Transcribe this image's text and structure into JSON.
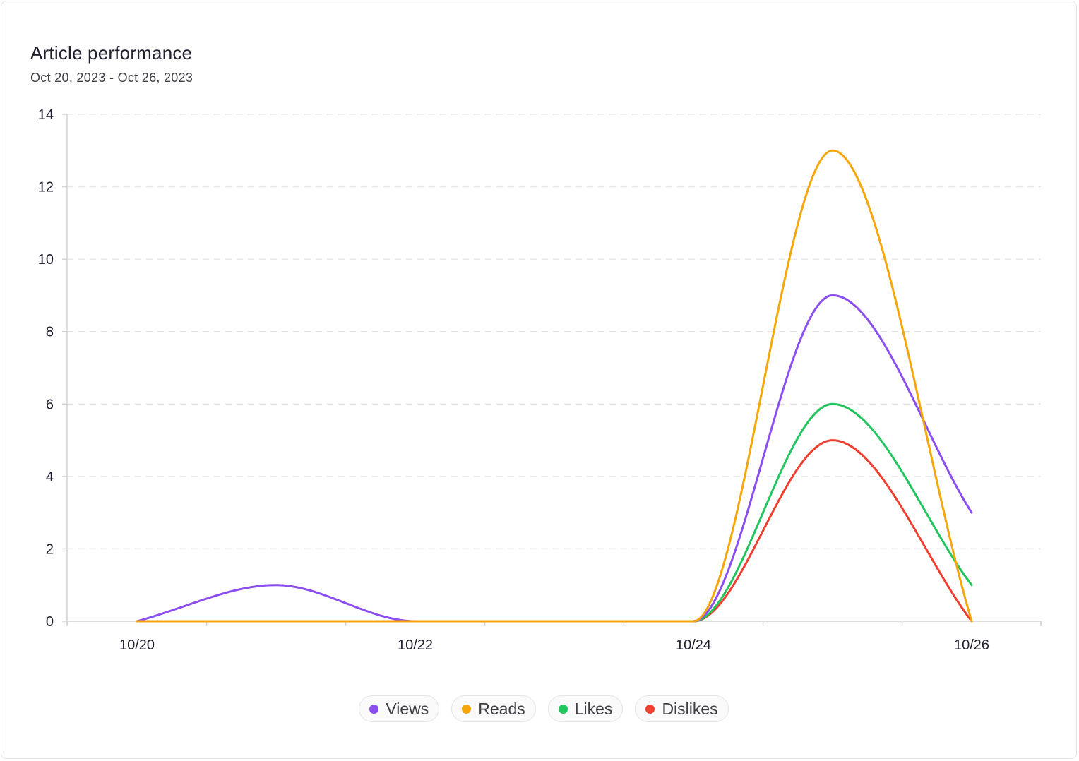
{
  "card": {
    "title": "Article performance",
    "subtitle": "Oct 20, 2023 - Oct 26, 2023"
  },
  "legend": [
    {
      "label": "Views",
      "color": "#8b4ef0",
      "icon": "dot-icon"
    },
    {
      "label": "Reads",
      "color": "#f5a60b",
      "icon": "dot-icon"
    },
    {
      "label": "Likes",
      "color": "#22c55e",
      "icon": "dot-icon"
    },
    {
      "label": "Dislikes",
      "color": "#f03e2f",
      "icon": "dot-icon"
    }
  ],
  "chart_data": {
    "type": "line",
    "title": "Article performance",
    "subtitle": "Oct 20, 2023 - Oct 26, 2023",
    "x": [
      "10/20",
      "10/21",
      "10/22",
      "10/23",
      "10/24",
      "10/25",
      "10/26"
    ],
    "x_tick_labels": [
      "10/20",
      "10/22",
      "10/24",
      "10/26"
    ],
    "ylim": [
      0,
      14
    ],
    "y_ticks": [
      0,
      2,
      4,
      6,
      8,
      10,
      12,
      14
    ],
    "grid": true,
    "legend_position": "bottom",
    "series": [
      {
        "name": "Views",
        "color": "#8b4ef0",
        "values": [
          0,
          1,
          0,
          0,
          0,
          9,
          3
        ]
      },
      {
        "name": "Reads",
        "color": "#f5a60b",
        "values": [
          0,
          0,
          0,
          0,
          0,
          13,
          0
        ]
      },
      {
        "name": "Likes",
        "color": "#22c55e",
        "values": [
          0,
          0,
          0,
          0,
          0,
          6,
          1
        ]
      },
      {
        "name": "Dislikes",
        "color": "#f03e2f",
        "values": [
          0,
          0,
          0,
          0,
          0,
          5,
          0
        ]
      }
    ]
  }
}
